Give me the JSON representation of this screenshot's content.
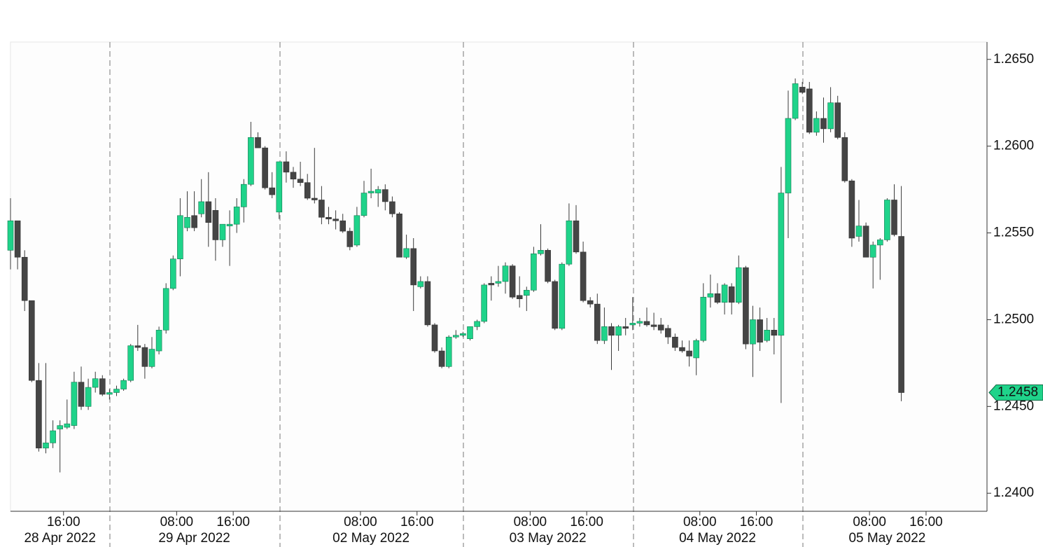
{
  "chart_data": {
    "type": "candlestick",
    "categories": [
      null,
      null,
      null,
      null,
      null,
      null,
      null,
      "16:00",
      null,
      null,
      null,
      null,
      null,
      null,
      null,
      null,
      null,
      null,
      null,
      null,
      null,
      null,
      null,
      "08:00",
      null,
      null,
      null,
      null,
      null,
      null,
      null,
      "16:00",
      null,
      null,
      null,
      null,
      null,
      null,
      null,
      null,
      null,
      null,
      null,
      null,
      null,
      null,
      null,
      null,
      null,
      "08:00",
      null,
      null,
      null,
      null,
      null,
      null,
      null,
      "16:00",
      null,
      null,
      null,
      null,
      null,
      null,
      null,
      null,
      null,
      null,
      null,
      null,
      null,
      null,
      null,
      "08:00",
      null,
      null,
      null,
      null,
      null,
      null,
      null,
      "16:00",
      null,
      null,
      null,
      null,
      null,
      null,
      null,
      null,
      null,
      null,
      null,
      null,
      null,
      null,
      null,
      "08:00",
      null,
      null,
      null,
      null,
      null,
      null,
      null,
      "16:00",
      null,
      null,
      null,
      null,
      null,
      null,
      null,
      null,
      null,
      null,
      null,
      null,
      null,
      null,
      null,
      "08:00",
      null,
      null,
      null,
      null,
      null,
      null,
      null,
      "16:00"
    ],
    "day_labels": [
      null,
      null,
      null,
      null,
      null,
      null,
      null,
      "28 Apr 2022",
      null,
      null,
      null,
      null,
      null,
      null,
      null,
      null,
      null,
      null,
      null,
      null,
      null,
      null,
      null,
      null,
      null,
      null,
      "29 Apr 2022",
      null,
      null,
      null,
      null,
      null,
      null,
      null,
      null,
      null,
      null,
      null,
      null,
      null,
      null,
      null,
      null,
      null,
      null,
      null,
      null,
      null,
      null,
      null,
      null,
      "02 May 2022",
      null,
      null,
      null,
      null,
      null,
      null,
      null,
      null,
      null,
      null,
      null,
      null,
      null,
      null,
      null,
      null,
      null,
      null,
      null,
      null,
      null,
      null,
      null,
      null,
      "03 May 2022",
      null,
      null,
      null,
      null,
      null,
      null,
      null,
      null,
      null,
      null,
      null,
      null,
      null,
      null,
      null,
      null,
      null,
      null,
      null,
      null,
      null,
      null,
      null,
      "04 May 2022",
      null,
      null,
      null,
      null,
      null,
      null,
      null,
      null,
      null,
      null,
      null,
      null,
      null,
      null,
      null,
      null,
      null,
      null,
      null,
      null,
      null,
      null,
      null,
      "05 May 2022",
      null,
      null,
      null,
      null,
      null
    ],
    "open": [
      1.254,
      1.2557,
      1.2536,
      1.2511,
      1.2465,
      1.2426,
      1.2429,
      1.2437,
      1.2438,
      1.2439,
      1.2464,
      1.245,
      1.2461,
      1.2466,
      1.2457,
      1.2458,
      1.246,
      1.2465,
      1.2485,
      1.2484,
      1.2473,
      1.2482,
      1.2494,
      1.2518,
      1.2535,
      1.2553,
      1.256,
      1.2561,
      1.2568,
      1.2563,
      1.2546,
      1.2554,
      1.2555,
      1.2565,
      1.2578,
      1.2605,
      1.2599,
      1.2576,
      1.2562,
      1.2591,
      1.2585,
      1.2581,
      1.2579,
      1.257,
      1.2569,
      1.2559,
      1.2558,
      1.2557,
      1.2551,
      1.2543,
      1.256,
      1.2573,
      1.2573,
      1.2575,
      1.2568,
      1.2561,
      1.2536,
      1.2541,
      1.2519,
      1.2522,
      1.2497,
      1.2482,
      1.2473,
      1.249,
      1.2491,
      1.2489,
      1.2496,
      1.2499,
      1.2521,
      1.2521,
      1.2522,
      1.2531,
      1.2514,
      1.2514,
      1.2517,
      1.2538,
      1.254,
      1.2522,
      1.2495,
      1.2532,
      1.2557,
      1.2539,
      1.2511,
      1.2509,
      1.2488,
      1.2496,
      1.2491,
      1.2496,
      1.2497,
      1.2498,
      1.2499,
      1.2497,
      1.2497,
      1.2495,
      1.249,
      1.2484,
      1.2482,
      1.2478,
      1.2488,
      1.2513,
      1.2515,
      1.251,
      1.2519,
      1.251,
      1.253,
      1.2486,
      1.25,
      1.2488,
      1.2494,
      1.2491,
      1.2573,
      1.2616,
      1.2634,
      1.2633,
      1.2608,
      1.2616,
      1.261,
      1.2625,
      1.2605,
      1.258,
      1.2548,
      1.2554,
      1.2536,
      1.2543,
      1.2546,
      1.2569,
      1.2548,
      null,
      null,
      null
    ],
    "high": [
      1.257,
      1.2557,
      1.254,
      1.2511,
      1.2475,
      1.2475,
      1.2442,
      1.2442,
      1.2454,
      1.247,
      1.2473,
      1.2466,
      1.247,
      1.2468,
      1.246,
      1.2462,
      1.2466,
      1.2486,
      1.2497,
      1.2486,
      1.249,
      1.2496,
      1.2521,
      1.2537,
      1.257,
      1.2574,
      1.2574,
      1.2581,
      1.2585,
      1.257,
      1.2555,
      1.2563,
      1.257,
      1.2581,
      1.2614,
      1.2608,
      1.26,
      1.2585,
      1.2591,
      1.2597,
      1.2588,
      1.2591,
      1.2584,
      1.2599,
      1.2577,
      1.2565,
      1.2563,
      1.2561,
      1.2553,
      1.2565,
      1.258,
      1.2587,
      1.2577,
      1.2578,
      1.2571,
      1.2562,
      1.2549,
      1.2547,
      1.2525,
      1.2525,
      1.2498,
      1.2484,
      1.2491,
      1.2494,
      1.2493,
      1.2496,
      1.25,
      1.2521,
      1.2525,
      1.2531,
      1.2533,
      1.2532,
      1.2525,
      1.2519,
      1.2542,
      1.2555,
      1.2541,
      1.2523,
      1.2533,
      1.2567,
      1.2566,
      1.2545,
      1.2513,
      1.2515,
      1.2507,
      1.2498,
      1.2497,
      1.2501,
      1.2513,
      1.2501,
      1.2507,
      1.2504,
      1.2501,
      1.2497,
      1.2492,
      1.2488,
      1.2488,
      1.2489,
      1.2521,
      1.2526,
      1.2521,
      1.2521,
      1.2521,
      1.2537,
      1.2531,
      1.2508,
      1.2507,
      1.2501,
      1.2501,
      1.2588,
      1.2632,
      1.2639,
      1.2637,
      1.2637,
      1.262,
      1.2628,
      1.2634,
      1.2629,
      1.2608,
      1.2581,
      1.2569,
      1.2556,
      1.2545,
      1.2547,
      1.257,
      1.2578,
      1.2577,
      null,
      null,
      null
    ],
    "low": [
      1.2529,
      1.2529,
      1.2505,
      1.2464,
      1.2424,
      1.2423,
      1.2426,
      1.2412,
      1.2437,
      1.2437,
      1.2448,
      1.2448,
      1.2458,
      1.2456,
      1.2454,
      1.2456,
      1.2459,
      1.2464,
      1.2482,
      1.2466,
      1.2472,
      1.248,
      1.2492,
      1.2517,
      1.2525,
      1.2551,
      1.2551,
      1.2559,
      1.2542,
      1.2534,
      1.2542,
      1.2531,
      1.255,
      1.2556,
      1.2577,
      1.2599,
      1.2575,
      1.257,
      1.2558,
      1.2579,
      1.2576,
      1.2577,
      1.2569,
      1.2567,
      1.2555,
      1.2555,
      1.2552,
      1.255,
      1.254,
      1.2542,
      1.2559,
      1.257,
      1.2565,
      1.2563,
      1.2559,
      1.2536,
      1.2535,
      1.2505,
      1.2518,
      1.2496,
      1.2481,
      1.2472,
      1.2472,
      1.2489,
      1.249,
      1.2488,
      1.2494,
      1.2498,
      1.2511,
      1.2519,
      1.2515,
      1.2512,
      1.2507,
      1.2505,
      1.2516,
      1.2537,
      1.2521,
      1.2494,
      1.2494,
      1.2531,
      1.2538,
      1.251,
      1.2507,
      1.2486,
      1.2486,
      1.2471,
      1.2482,
      1.2491,
      1.2494,
      1.2496,
      1.2496,
      1.2494,
      1.2492,
      1.2486,
      1.2482,
      1.2481,
      1.2473,
      1.2468,
      1.2487,
      1.2507,
      1.2509,
      1.2503,
      1.2503,
      1.2509,
      1.2483,
      1.2467,
      1.2482,
      1.2487,
      1.248,
      1.2452,
      1.2547,
      1.2615,
      1.263,
      1.2607,
      1.2606,
      1.2602,
      1.2608,
      1.2604,
      1.2579,
      1.2542,
      1.2545,
      1.2536,
      1.2518,
      1.2523,
      1.2545,
      1.2548,
      1.2453,
      null,
      null,
      null
    ],
    "close": [
      1.2557,
      1.2536,
      1.2511,
      1.2465,
      1.2426,
      1.2429,
      1.2436,
      1.2439,
      1.244,
      1.2464,
      1.245,
      1.2461,
      1.2466,
      1.2457,
      1.2458,
      1.246,
      1.2465,
      1.2485,
      1.2484,
      1.2473,
      1.2483,
      1.2494,
      1.2518,
      1.2535,
      1.256,
      1.2559,
      1.2553,
      1.2568,
      1.2556,
      1.2546,
      1.2555,
      1.2555,
      1.2565,
      1.2578,
      1.2605,
      1.2599,
      1.2576,
      1.2572,
      1.2591,
      1.2585,
      1.2581,
      1.2579,
      1.257,
      1.2569,
      1.2559,
      1.2558,
      1.2557,
      1.2551,
      1.2542,
      1.256,
      1.2573,
      1.2574,
      1.2575,
      1.2568,
      1.2561,
      1.2536,
      1.2541,
      1.252,
      1.2522,
      1.2497,
      1.2482,
      1.2473,
      1.249,
      1.2491,
      1.2492,
      1.2496,
      1.2499,
      1.252,
      1.252,
      1.2522,
      1.2531,
      1.2513,
      1.2512,
      1.2517,
      1.2538,
      1.254,
      1.2522,
      1.2495,
      1.2532,
      1.2557,
      1.2539,
      1.2511,
      1.2509,
      1.2488,
      1.2496,
      1.2491,
      1.2496,
      1.2495,
      1.2498,
      1.2499,
      1.2497,
      1.2496,
      1.2494,
      1.249,
      1.2484,
      1.2482,
      1.2479,
      1.2488,
      1.2513,
      1.2515,
      1.251,
      1.252,
      1.251,
      1.253,
      1.2486,
      1.25,
      1.2487,
      1.2494,
      1.2491,
      1.2573,
      1.2616,
      1.2636,
      1.2631,
      1.2608,
      1.2616,
      1.261,
      1.2625,
      1.2605,
      1.258,
      1.2547,
      1.2554,
      1.2536,
      1.2543,
      1.2546,
      1.2569,
      1.2549,
      1.2458,
      null,
      null,
      null
    ],
    "up_color": "#1fd38a",
    "down_color": "#454545",
    "ylim": [
      1.239,
      1.266
    ],
    "yticks": [
      {
        "value": 1.24,
        "label": "1.2400"
      },
      {
        "value": 1.245,
        "label": "1.2450"
      },
      {
        "value": 1.25,
        "label": "1.2500"
      },
      {
        "value": 1.255,
        "label": "1.2550"
      },
      {
        "value": 1.26,
        "label": "1.2600"
      },
      {
        "value": 1.265,
        "label": "1.2650"
      }
    ]
  }
}
